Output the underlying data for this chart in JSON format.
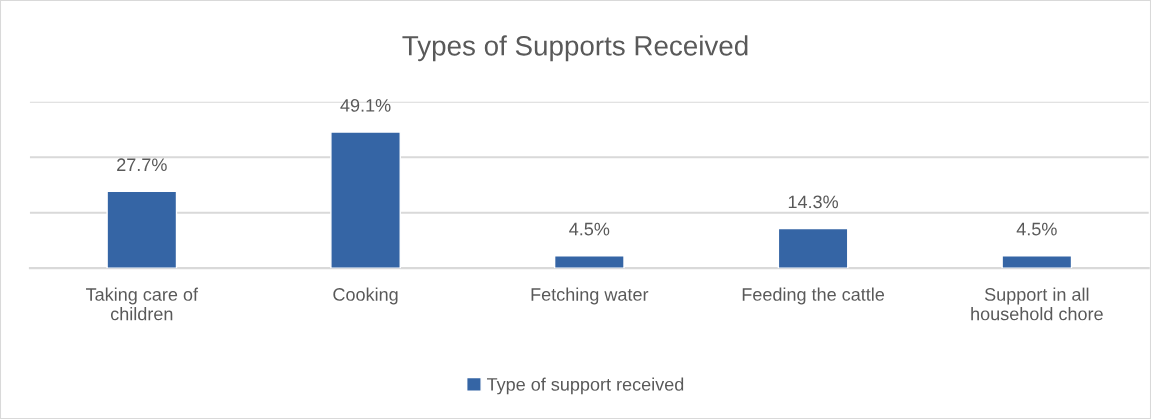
{
  "chart_data": {
    "type": "bar",
    "title": "Types of Supports Received",
    "categories": [
      "Taking care of\nchildren",
      "Cooking",
      "Fetching water",
      "Feeding the cattle",
      "Support in all\nhousehold chore"
    ],
    "series": [
      {
        "name": "Type of support received",
        "color": "#3565a5",
        "values": [
          27.7,
          49.1,
          4.5,
          14.3,
          4.5
        ],
        "value_labels": [
          "27.7%",
          "49.1%",
          "4.5%",
          "14.3%",
          "4.5%"
        ]
      }
    ],
    "ylim": [
      0,
      60
    ],
    "yticks": [
      {
        "value": 0,
        "label": null
      },
      {
        "value": 20,
        "label": null
      },
      {
        "value": 40,
        "label": null
      },
      {
        "value": 60,
        "label": null
      }
    ],
    "tick_labels": "x",
    "grid": "y",
    "legend": "bottom"
  }
}
